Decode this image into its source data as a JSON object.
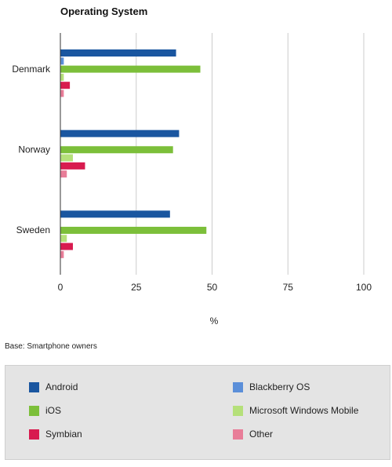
{
  "chart_data": {
    "type": "bar",
    "orientation": "horizontal",
    "title": "Operating System",
    "xlabel": "%",
    "ylabel": "",
    "xlim": [
      0,
      100
    ],
    "xticks": [
      0,
      25,
      50,
      75,
      100
    ],
    "grid": true,
    "categories": [
      "Denmark",
      "Norway",
      "Sweden"
    ],
    "series": [
      {
        "name": "Android",
        "color": "#1a56a0",
        "values": [
          38,
          39,
          36
        ]
      },
      {
        "name": "Blackberry OS",
        "color": "#5b8fd9",
        "values": [
          1,
          0,
          0
        ]
      },
      {
        "name": "iOS",
        "color": "#7cbf3a",
        "values": [
          46,
          37,
          48
        ]
      },
      {
        "name": "Microsoft Windows Mobile",
        "color": "#b5e07a",
        "values": [
          1,
          4,
          2
        ]
      },
      {
        "name": "Symbian",
        "color": "#d81b4f",
        "values": [
          3,
          8,
          4
        ]
      },
      {
        "name": "Other",
        "color": "#e87d98",
        "values": [
          1,
          2,
          1
        ]
      }
    ],
    "legend_position": "bottom"
  },
  "note": "Base: Smartphone owners"
}
